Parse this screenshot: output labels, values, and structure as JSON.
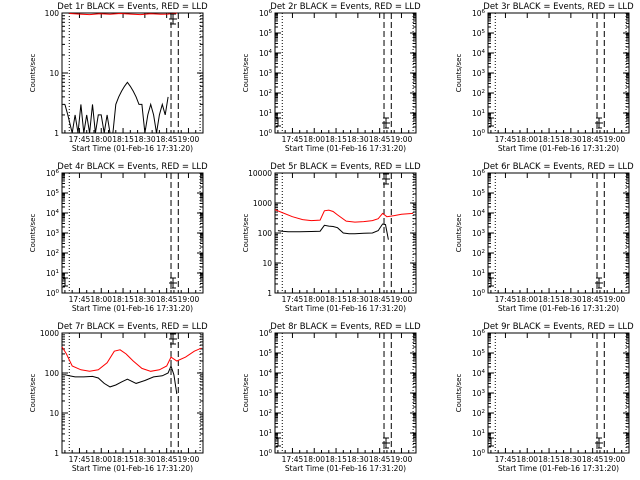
{
  "chart_data": [
    {
      "type": "line",
      "title": "Det 1r BLACK = Events, RED = LLD",
      "xlabel": "Start Time (01-Feb-16 17:31:20)",
      "ylabel": "Counts/sec",
      "yscale": "log",
      "ylim": [
        1,
        100
      ],
      "xlim": [
        "17:33",
        "19:10"
      ],
      "x_ticks": [
        "17:45",
        "18:00",
        "18:15",
        "18:30",
        "18:45",
        "19:00"
      ],
      "y_ticks": [
        "1",
        "10",
        "100"
      ],
      "grid": false,
      "legend": "none",
      "vlines_dotted": [
        "17:38",
        "19:08"
      ],
      "vlines_dashed": [
        "18:48",
        "18:53"
      ],
      "series": [
        {
          "color": "#000000",
          "x": [
            "17:35",
            "17:37",
            "17:40",
            "17:42",
            "17:44",
            "17:46",
            "17:48",
            "17:50",
            "17:52",
            "17:54",
            "17:56",
            "17:58",
            "18:00",
            "18:02",
            "18:04",
            "18:06",
            "18:08",
            "18:10",
            "18:12",
            "18:14",
            "18:16",
            "18:18",
            "18:20",
            "18:22",
            "18:24",
            "18:26",
            "18:28",
            "18:30",
            "18:32",
            "18:34",
            "18:36",
            "18:38",
            "18:40",
            "18:42",
            "18:44",
            "18:46"
          ],
          "y": [
            3,
            2,
            1,
            2,
            1,
            3,
            1,
            2,
            1,
            3,
            1,
            2,
            2,
            1,
            2,
            1,
            1,
            3,
            4,
            5,
            6,
            7,
            6,
            5,
            4,
            3,
            3,
            1,
            2,
            3,
            2,
            1,
            2,
            3,
            2,
            4
          ]
        },
        {
          "color": "#ff0000",
          "x": [
            "17:38",
            "17:45",
            "17:52",
            "17:59",
            "18:06",
            "18:13",
            "18:20",
            "18:27",
            "18:34",
            "18:41",
            "18:46",
            "18:49",
            "18:52"
          ],
          "y": [
            98,
            96,
            94,
            97,
            95,
            98,
            96,
            94,
            97,
            95,
            96,
            98,
            99
          ]
        }
      ]
    },
    {
      "type": "line",
      "title": "Det 2r BLACK = Events, RED = LLD",
      "xlabel": "Start Time (01-Feb-16 17:31:20)",
      "ylabel": "Counts/sec",
      "yscale": "log",
      "ylim": [
        1,
        1000000
      ],
      "xlim": [
        "17:33",
        "19:10"
      ],
      "x_ticks": [
        "17:45",
        "18:00",
        "18:15",
        "18:30",
        "18:45",
        "19:00"
      ],
      "y_ticks": [
        "10^0",
        "10^1",
        "10^2",
        "10^3",
        "10^4",
        "10^5",
        "10^6"
      ],
      "grid": false,
      "legend": "none",
      "vlines_dotted": [
        "17:38",
        "19:08"
      ],
      "vlines_dashed": [
        "18:48",
        "18:53"
      ],
      "series": []
    },
    {
      "type": "line",
      "title": "Det 3r BLACK = Events, RED = LLD",
      "xlabel": "Start Time (01-Feb-16 17:31:20)",
      "ylabel": "Counts/sec",
      "yscale": "log",
      "ylim": [
        1,
        1000000
      ],
      "xlim": [
        "17:33",
        "19:10"
      ],
      "x_ticks": [
        "17:45",
        "18:00",
        "18:15",
        "18:30",
        "18:45",
        "19:00"
      ],
      "y_ticks": [
        "10^0",
        "10^1",
        "10^2",
        "10^3",
        "10^4",
        "10^5",
        "10^6"
      ],
      "grid": false,
      "legend": "none",
      "vlines_dotted": [
        "17:38",
        "19:08"
      ],
      "vlines_dashed": [
        "18:48",
        "18:53"
      ],
      "series": []
    },
    {
      "type": "line",
      "title": "Det 4r BLACK = Events, RED = LLD",
      "xlabel": "Start Time (01-Feb-16 17:31:20)",
      "ylabel": "Counts/sec",
      "yscale": "log",
      "ylim": [
        1,
        1000000
      ],
      "xlim": [
        "17:33",
        "19:10"
      ],
      "x_ticks": [
        "17:45",
        "18:00",
        "18:15",
        "18:30",
        "18:45",
        "19:00"
      ],
      "y_ticks": [
        "10^0",
        "10^1",
        "10^2",
        "10^3",
        "10^4",
        "10^5",
        "10^6"
      ],
      "grid": false,
      "legend": "none",
      "vlines_dotted": [
        "17:38",
        "19:08"
      ],
      "vlines_dashed": [
        "18:48",
        "18:53"
      ],
      "series": []
    },
    {
      "type": "line",
      "title": "Det 5r BLACK = Events, RED = LLD",
      "xlabel": "Start Time (01-Feb-16 17:31:20)",
      "ylabel": "Counts/sec",
      "yscale": "log",
      "ylim": [
        1,
        10000
      ],
      "xlim": [
        "17:33",
        "19:10"
      ],
      "x_ticks": [
        "17:45",
        "18:00",
        "18:15",
        "18:30",
        "18:45",
        "19:00"
      ],
      "y_ticks": [
        "1",
        "10",
        "100",
        "1000",
        "10000"
      ],
      "grid": false,
      "legend": "none",
      "vlines_dotted": [
        "17:38",
        "19:08"
      ],
      "vlines_dashed": [
        "18:48",
        "18:53"
      ],
      "series": [
        {
          "color": "#000000",
          "x": [
            "17:35",
            "17:38",
            "17:42",
            "17:50",
            "17:58",
            "18:04",
            "18:07",
            "18:10",
            "18:13",
            "18:16",
            "18:20",
            "18:24",
            "18:28",
            "18:34",
            "18:40",
            "18:44",
            "18:47",
            "18:49",
            "18:51"
          ],
          "y": [
            120,
            115,
            110,
            110,
            112,
            115,
            180,
            170,
            165,
            150,
            100,
            95,
            95,
            98,
            100,
            120,
            200,
            190,
            60
          ]
        },
        {
          "color": "#ff0000",
          "x": [
            "17:33",
            "17:38",
            "17:45",
            "17:52",
            "17:58",
            "18:04",
            "18:07",
            "18:10",
            "18:13",
            "18:16",
            "18:22",
            "18:28",
            "18:34",
            "18:40",
            "18:44",
            "18:47",
            "18:50",
            "18:55",
            "19:00",
            "19:08"
          ],
          "y": [
            600,
            480,
            350,
            280,
            260,
            270,
            550,
            580,
            520,
            400,
            250,
            230,
            240,
            260,
            300,
            450,
            350,
            380,
            420,
            450
          ]
        }
      ]
    },
    {
      "type": "line",
      "title": "Det 6r BLACK = Events, RED = LLD",
      "xlabel": "Start Time (01-Feb-16 17:31:20)",
      "ylabel": "Counts/sec",
      "yscale": "log",
      "ylim": [
        1,
        1000000
      ],
      "xlim": [
        "17:33",
        "19:10"
      ],
      "x_ticks": [
        "17:45",
        "18:00",
        "18:15",
        "18:30",
        "18:45",
        "19:00"
      ],
      "y_ticks": [
        "10^0",
        "10^1",
        "10^2",
        "10^3",
        "10^4",
        "10^5",
        "10^6"
      ],
      "grid": false,
      "legend": "none",
      "vlines_dotted": [
        "17:38",
        "19:08"
      ],
      "vlines_dashed": [
        "18:48",
        "18:53"
      ],
      "series": []
    },
    {
      "type": "line",
      "title": "Det 7r BLACK = Events, RED = LLD",
      "xlabel": "Start Time (01-Feb-16 17:31:20)",
      "ylabel": "Counts/sec",
      "yscale": "log",
      "ylim": [
        1,
        1000
      ],
      "xlim": [
        "17:33",
        "19:10"
      ],
      "x_ticks": [
        "17:45",
        "18:00",
        "18:15",
        "18:30",
        "18:45",
        "19:00"
      ],
      "y_ticks": [
        "1",
        "10",
        "100",
        "1000"
      ],
      "grid": false,
      "legend": "none",
      "vlines_dotted": [
        "17:38",
        "19:08"
      ],
      "vlines_dashed": [
        "18:48",
        "18:53"
      ],
      "series": [
        {
          "color": "#000000",
          "x": [
            "17:35",
            "17:38",
            "17:42",
            "17:48",
            "17:54",
            "17:58",
            "18:02",
            "18:06",
            "18:10",
            "18:14",
            "18:18",
            "18:24",
            "18:30",
            "18:36",
            "18:42",
            "18:46",
            "18:48",
            "18:50",
            "18:52"
          ],
          "y": [
            90,
            85,
            80,
            80,
            82,
            75,
            55,
            45,
            50,
            60,
            70,
            55,
            65,
            80,
            85,
            100,
            150,
            90,
            30
          ]
        },
        {
          "color": "#ff0000",
          "x": [
            "17:33",
            "17:36",
            "17:40",
            "17:46",
            "17:52",
            "17:58",
            "18:04",
            "18:09",
            "18:13",
            "18:17",
            "18:22",
            "18:28",
            "18:34",
            "18:40",
            "18:45",
            "18:48",
            "18:52",
            "18:58",
            "19:04",
            "19:09"
          ],
          "y": [
            450,
            300,
            150,
            120,
            110,
            120,
            180,
            350,
            380,
            300,
            200,
            130,
            110,
            120,
            150,
            250,
            200,
            250,
            350,
            420
          ]
        }
      ]
    },
    {
      "type": "line",
      "title": "Det 8r BLACK = Events, RED = LLD",
      "xlabel": "Start Time (01-Feb-16 17:31:20)",
      "ylabel": "Counts/sec",
      "yscale": "log",
      "ylim": [
        1,
        1000000
      ],
      "xlim": [
        "17:33",
        "19:10"
      ],
      "x_ticks": [
        "17:45",
        "18:00",
        "18:15",
        "18:30",
        "18:45",
        "19:00"
      ],
      "y_ticks": [
        "10^0",
        "10^1",
        "10^2",
        "10^3",
        "10^4",
        "10^5",
        "10^6"
      ],
      "grid": false,
      "legend": "none",
      "vlines_dotted": [
        "17:38",
        "19:08"
      ],
      "vlines_dashed": [
        "18:48",
        "18:53"
      ],
      "series": []
    },
    {
      "type": "line",
      "title": "Det 9r BLACK = Events, RED = LLD",
      "xlabel": "Start Time (01-Feb-16 17:31:20)",
      "ylabel": "Counts/sec",
      "yscale": "log",
      "ylim": [
        1,
        1000000
      ],
      "xlim": [
        "17:33",
        "19:10"
      ],
      "x_ticks": [
        "17:45",
        "18:00",
        "18:15",
        "18:30",
        "18:45",
        "19:00"
      ],
      "y_ticks": [
        "10^0",
        "10^1",
        "10^2",
        "10^3",
        "10^4",
        "10^5",
        "10^6"
      ],
      "grid": false,
      "legend": "none",
      "vlines_dotted": [
        "17:38",
        "19:08"
      ],
      "vlines_dashed": [
        "18:48",
        "18:53"
      ],
      "series": []
    }
  ]
}
